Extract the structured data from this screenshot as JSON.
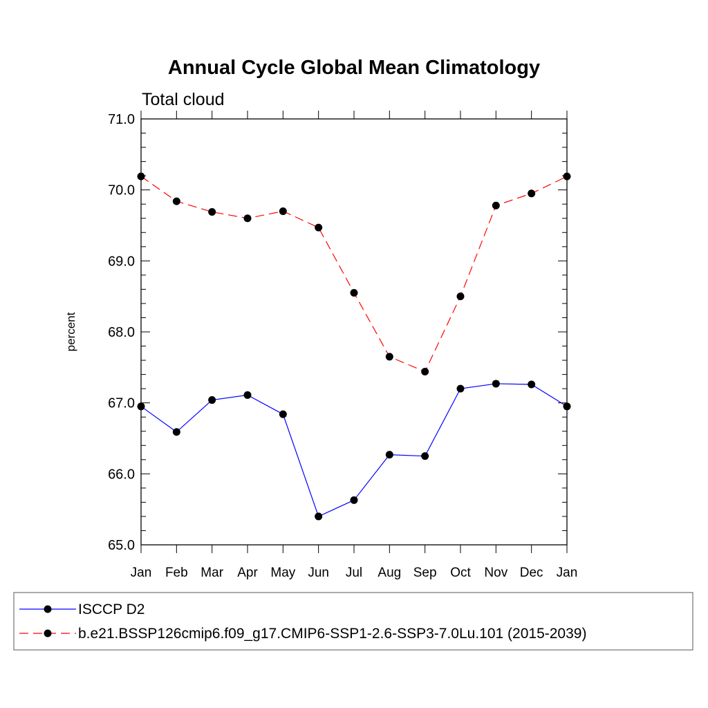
{
  "chart_data": {
    "type": "line",
    "title": "Annual Cycle Global Mean Climatology",
    "subtitle": "Total cloud",
    "xlabel": "",
    "ylabel": "percent",
    "categories": [
      "Jan",
      "Feb",
      "Mar",
      "Apr",
      "May",
      "Jun",
      "Jul",
      "Aug",
      "Sep",
      "Oct",
      "Nov",
      "Dec",
      "Jan"
    ],
    "ylim": [
      65.0,
      71.0
    ],
    "yticks": [
      "65.0",
      "66.0",
      "67.0",
      "68.0",
      "69.0",
      "70.0",
      "71.0"
    ],
    "grid": false,
    "legend_position": "bottom",
    "series": [
      {
        "name": "ISCCP D2",
        "color": "#0000ff",
        "line_style": "solid",
        "marker": "filled-circle",
        "values": [
          66.95,
          66.59,
          67.04,
          67.11,
          66.84,
          65.4,
          65.63,
          66.27,
          66.25,
          67.2,
          67.27,
          67.26,
          66.95
        ]
      },
      {
        "name": "b.e21.BSSP126cmip6.f09_g17.CMIP6-SSP1-2.6-SSP3-7.0Lu.101 (2015-2039)",
        "color": "#ff0000",
        "line_style": "dashed",
        "marker": "filled-circle",
        "values": [
          70.19,
          69.84,
          69.69,
          69.6,
          69.7,
          69.47,
          68.55,
          67.65,
          67.44,
          68.5,
          69.78,
          69.95,
          70.19
        ]
      }
    ]
  }
}
